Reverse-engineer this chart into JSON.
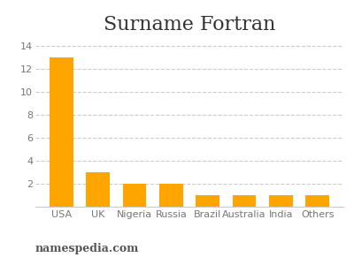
{
  "title": "Surname Fortran",
  "categories": [
    "USA",
    "UK",
    "Nigeria",
    "Russia",
    "Brazil",
    "Australia",
    "India",
    "Others"
  ],
  "values": [
    13,
    3,
    2,
    2,
    1,
    1,
    1,
    1
  ],
  "bar_color": "#FFA500",
  "ylim": [
    0,
    14.5
  ],
  "yticks": [
    2,
    4,
    6,
    8,
    10,
    12,
    14
  ],
  "ytick_labels": [
    "2",
    "4",
    "6",
    "8",
    "10",
    "12",
    "14"
  ],
  "grid_color": "#cccccc",
  "background_color": "#ffffff",
  "title_fontsize": 16,
  "tick_fontsize": 8,
  "watermark": "namespedia.com",
  "watermark_fontsize": 9
}
